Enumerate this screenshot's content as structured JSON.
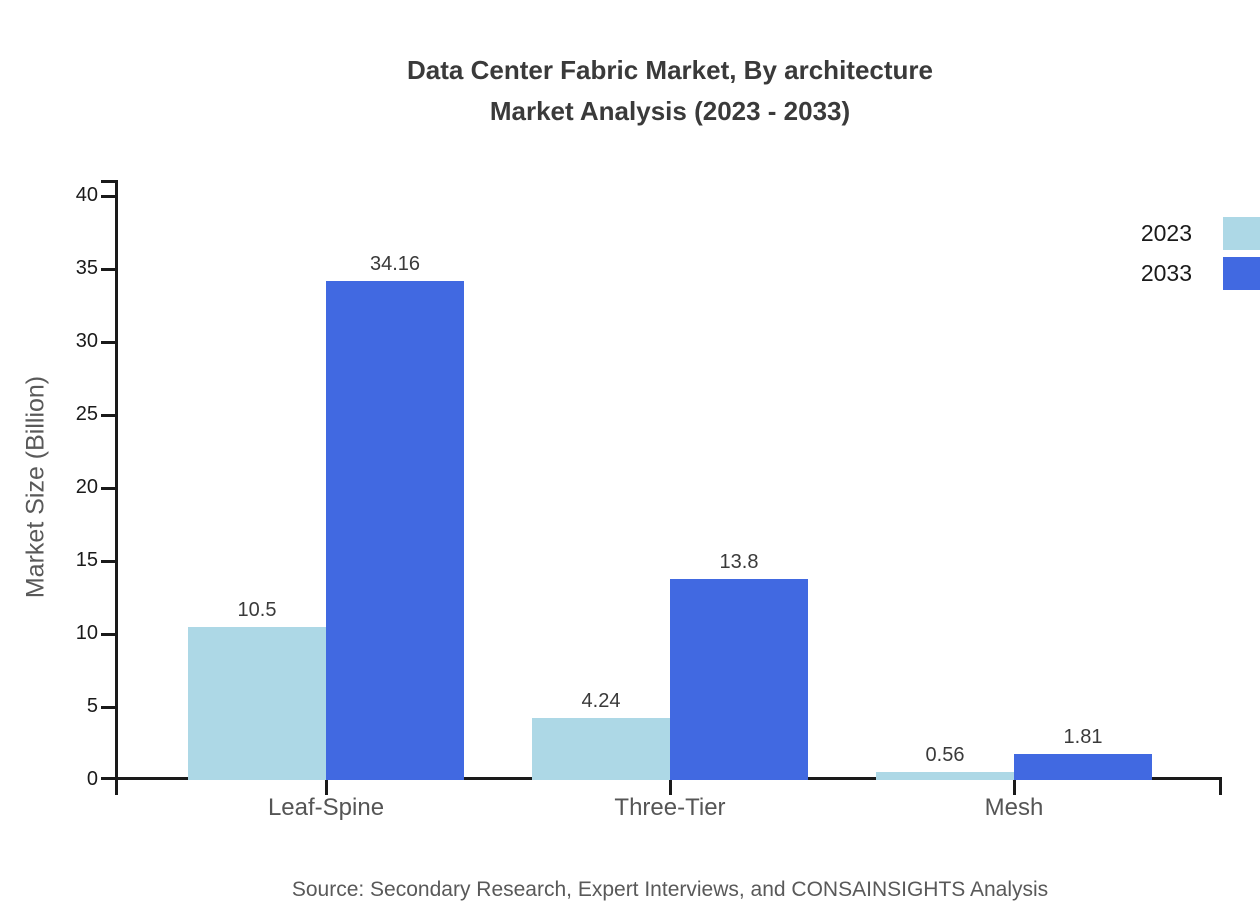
{
  "title": {
    "line1": "Data Center Fabric Market, By architecture",
    "line2": "Market Analysis (2023 - 2033)"
  },
  "source": "Source: Secondary Research, Expert Interviews, and CONSAINSIGHTS Analysis",
  "chart_data": {
    "type": "bar",
    "title": "Data Center Fabric Market, By architecture Market Analysis (2023 - 2033)",
    "categories": [
      "Leaf-Spine",
      "Three-Tier",
      "Mesh"
    ],
    "series": [
      {
        "name": "2023",
        "color": "#ADD8E6",
        "values": [
          10.5,
          4.24,
          0.56
        ]
      },
      {
        "name": "2033",
        "color": "#4169E1",
        "values": [
          34.16,
          13.8,
          1.81
        ]
      }
    ],
    "value_labels": [
      [
        "10.5",
        "4.24",
        "0.56"
      ],
      [
        "34.16",
        "13.8",
        "1.81"
      ]
    ],
    "xlabel": "",
    "ylabel": "Market Size (Billion)",
    "ylim": [
      0,
      40
    ],
    "ytick_step": 5,
    "ytick_labels": [
      "0",
      "5",
      "10",
      "15",
      "20",
      "25",
      "30",
      "35",
      "40"
    ],
    "grid": false,
    "legend_position": "upper-right"
  },
  "colors": {
    "axis": "#1a1a1a",
    "title_text": "#3a3a3a",
    "value_label_text": "#3a3a3a",
    "category_label_text": "#555555",
    "axis_label_text": "#595959",
    "source_text": "#595959",
    "series_2023": "#ADD8E6",
    "series_2033": "#4169E1"
  }
}
